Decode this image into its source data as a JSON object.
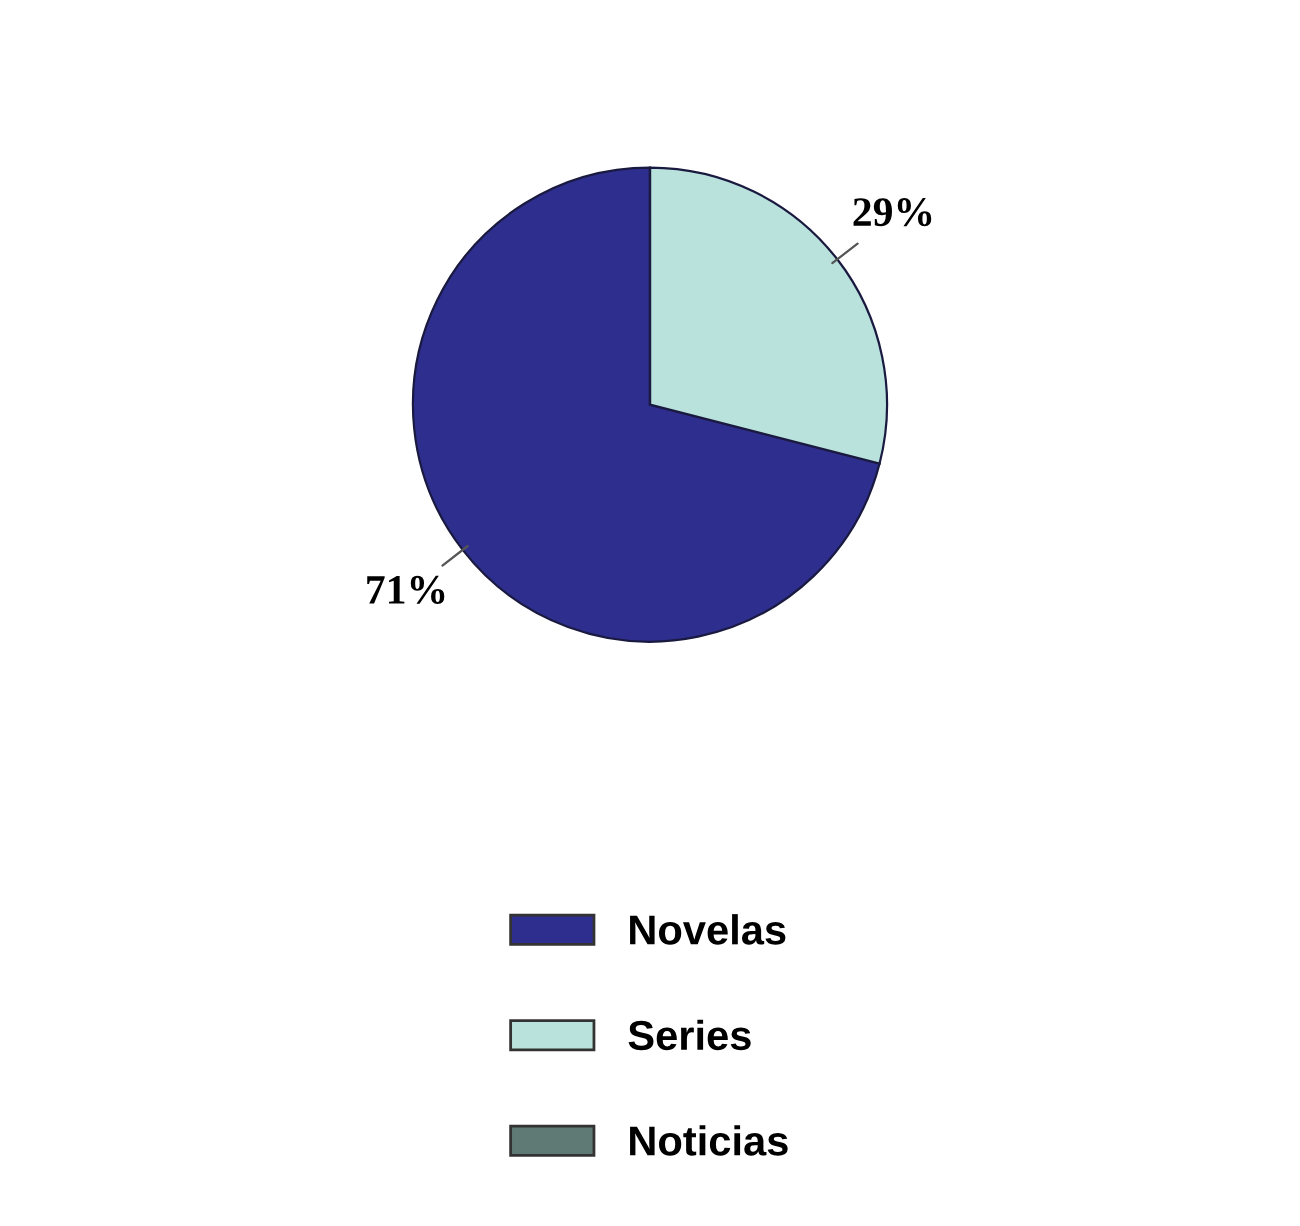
{
  "chart_data": {
    "type": "pie",
    "categories": [
      "Novelas",
      "Series",
      "Noticias"
    ],
    "values": [
      71,
      29,
      0
    ],
    "colors": [
      "#2e2e8f",
      "#b9e2dc",
      "#5f7a74"
    ],
    "value_labels": [
      "71%",
      "29%",
      null
    ],
    "legend": "bottom"
  }
}
